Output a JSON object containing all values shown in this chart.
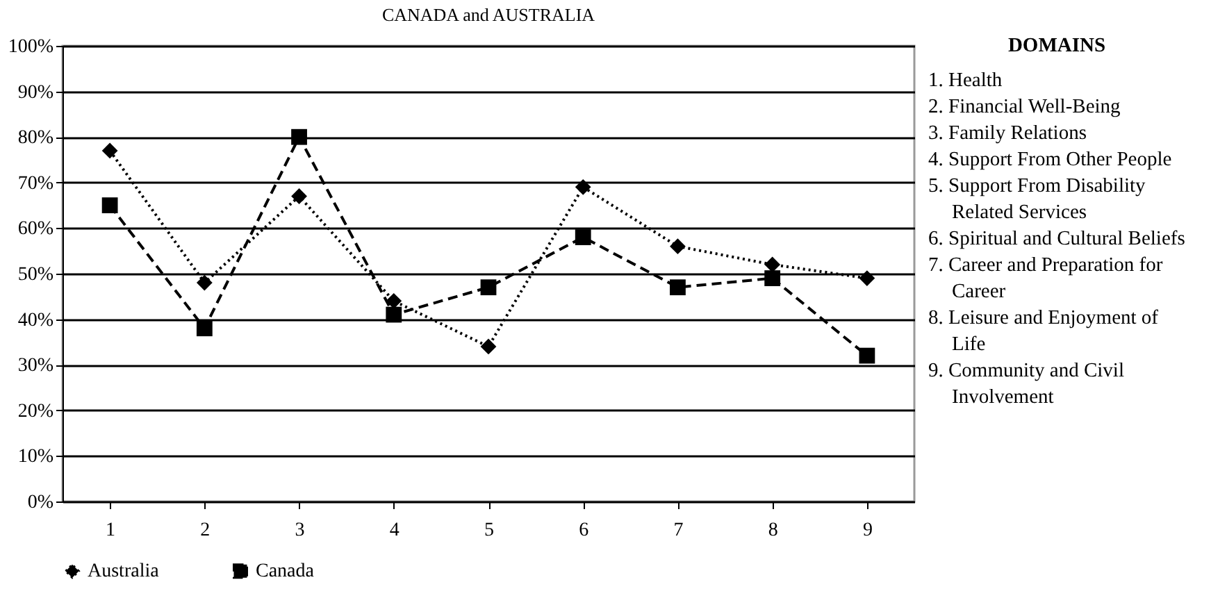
{
  "chart_data": {
    "type": "line",
    "title": "CANADA  and AUSTRALIA",
    "categories": [
      "1",
      "2",
      "3",
      "4",
      "5",
      "6",
      "7",
      "8",
      "9"
    ],
    "series": [
      {
        "name": "Australia",
        "color": "#000000",
        "marker": "diamond",
        "line_style": "dotted",
        "values": [
          77,
          48,
          67,
          44,
          34,
          69,
          56,
          52,
          49
        ]
      },
      {
        "name": "Canada",
        "color": "#000000",
        "marker": "square",
        "line_style": "dashed",
        "values": [
          65,
          38,
          80,
          41,
          47,
          58,
          47,
          49,
          32
        ]
      }
    ],
    "ylim": [
      0,
      100
    ],
    "yticks": [
      {
        "value": 0,
        "label": "0%"
      },
      {
        "value": 10,
        "label": "10%"
      },
      {
        "value": 20,
        "label": "20%"
      },
      {
        "value": 30,
        "label": "30%"
      },
      {
        "value": 40,
        "label": "40%"
      },
      {
        "value": 50,
        "label": "50%"
      },
      {
        "value": 60,
        "label": "60%"
      },
      {
        "value": 70,
        "label": "70%"
      },
      {
        "value": 80,
        "label": "80%"
      },
      {
        "value": 90,
        "label": "90%"
      },
      {
        "value": 100,
        "label": "100%"
      }
    ],
    "grid": "y",
    "legend": "bottom",
    "annotations": [
      "DOMAINS",
      "1. Health",
      "2. Financial Well-Being",
      "3. Family Relations",
      "4. Support From Other People",
      "5. Support From Disability Related Services",
      "6. Spiritual and Cultural Beliefs",
      "7. Career and Preparation for Career",
      "8. Leisure and Enjoyment of Life",
      "9. Community and Civil Involvement"
    ]
  }
}
